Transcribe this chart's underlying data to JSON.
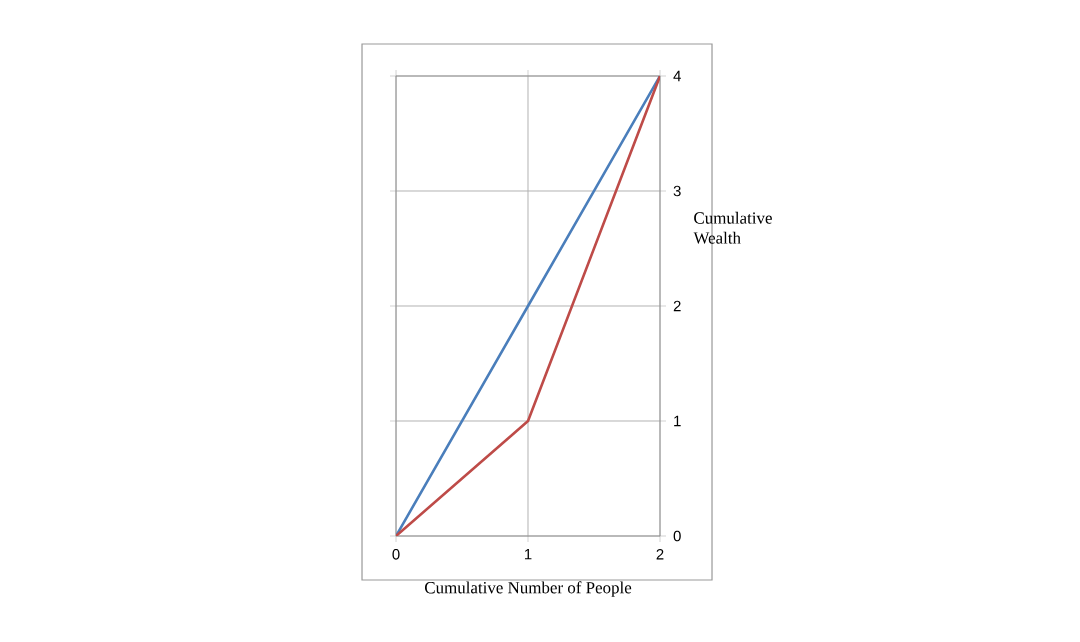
{
  "chart_data": {
    "type": "line",
    "xlabel": "Cumulative Number of People",
    "ylabel": "Cumulative Wealth",
    "x": [
      0,
      1,
      2
    ],
    "xlim": [
      0,
      2
    ],
    "xticks": [
      0,
      1,
      2
    ],
    "ylim": [
      0,
      4
    ],
    "yticks": [
      0,
      1,
      2,
      3,
      4
    ],
    "grid": true,
    "marker": "none",
    "series": [
      {
        "color": "#4a7ebb",
        "values": [
          0,
          2,
          4
        ]
      },
      {
        "color": "#be4b48",
        "values": [
          0,
          1,
          4
        ]
      }
    ]
  }
}
